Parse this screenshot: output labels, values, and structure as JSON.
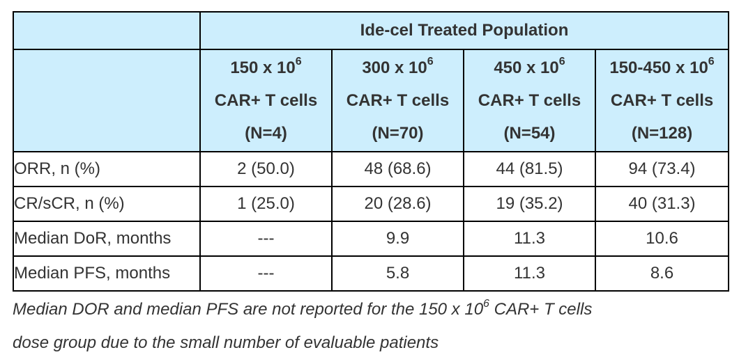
{
  "table": {
    "group_header": "Ide-cel Treated Population",
    "columns": [
      {
        "dose_base": "150 x 10",
        "dose_exp": "6",
        "cell_label": "CAR+ T cells",
        "n_label": "(N=4)"
      },
      {
        "dose_base": "300 x 10",
        "dose_exp": "6",
        "cell_label": "CAR+ T cells",
        "n_label": "(N=70)"
      },
      {
        "dose_base": "450 x 10",
        "dose_exp": "6",
        "cell_label": "CAR+ T cells",
        "n_label": "(N=54)"
      },
      {
        "dose_base": "150-450 x 10",
        "dose_exp": "6",
        "cell_label": "CAR+ T cells",
        "n_label": "(N=128)"
      }
    ],
    "rows": [
      {
        "label": "ORR, n (%)",
        "values": [
          "2 (50.0)",
          "48 (68.6)",
          "44 (81.5)",
          "94 (73.4)"
        ]
      },
      {
        "label": "CR/sCR, n (%)",
        "values": [
          "1 (25.0)",
          "20 (28.6)",
          "19 (35.2)",
          "40 (31.3)"
        ]
      },
      {
        "label": "Median DoR, months",
        "values": [
          "---",
          "9.9",
          "11.3",
          "10.6"
        ]
      },
      {
        "label": "Median PFS, months",
        "values": [
          "---",
          "5.8",
          "11.3",
          "8.6"
        ]
      }
    ]
  },
  "footnote": {
    "line1_before": "Median DOR and median PFS are not reported for the 150 x 10",
    "line1_exp": "6",
    "line1_after": " CAR+ T cells",
    "line2": "dose group due to the small number of evaluable patients"
  },
  "colors": {
    "header_bg": "#cdeefd",
    "border": "#000000",
    "text": "#333333"
  }
}
